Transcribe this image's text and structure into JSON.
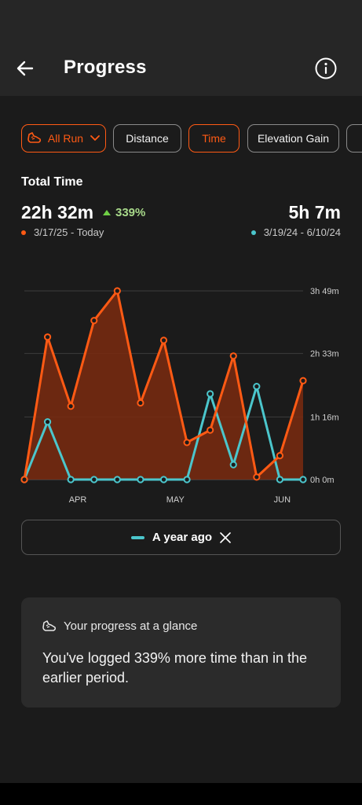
{
  "header": {
    "title": "Progress"
  },
  "filters": [
    {
      "label": "All Run",
      "active": true,
      "icon": "shoe-icon",
      "dropdown": true
    },
    {
      "label": "Distance",
      "active": false
    },
    {
      "label": "Time",
      "active": true
    },
    {
      "label": "Elevation Gain",
      "active": false
    },
    {
      "label": "",
      "active": false
    }
  ],
  "summary": {
    "metric": "Total Time",
    "current": {
      "value": "22h 32m",
      "range": "3/17/25 - Today",
      "color": "#ff5a14"
    },
    "change": "339%",
    "previous": {
      "value": "5h 7m",
      "range": "3/19/24 - 6/10/24",
      "color": "#4bc6cc"
    }
  },
  "legend": {
    "label": "A year ago"
  },
  "card": {
    "title": "Your progress at a glance",
    "body": "You've logged 339% more time than in the earlier period."
  },
  "chart_data": {
    "type": "area",
    "x_tick_labels": [
      "APR",
      "MAY",
      "JUN"
    ],
    "y_tick_labels": [
      "3h 49m",
      "2h 33m",
      "1h 16m",
      "0h 0m"
    ],
    "ylim_minutes": [
      0,
      229
    ],
    "series": [
      {
        "name": "",
        "color": "#ff5a14",
        "minutes": [
          0,
          173,
          89,
          193,
          229,
          93,
          169,
          45,
          60,
          150,
          3,
          29,
          120
        ]
      },
      {
        "name": "A year ago",
        "color": "#4bc6cc",
        "minutes": [
          0,
          70,
          0,
          0,
          0,
          0,
          0,
          0,
          104,
          18,
          113,
          0,
          0
        ]
      }
    ]
  }
}
